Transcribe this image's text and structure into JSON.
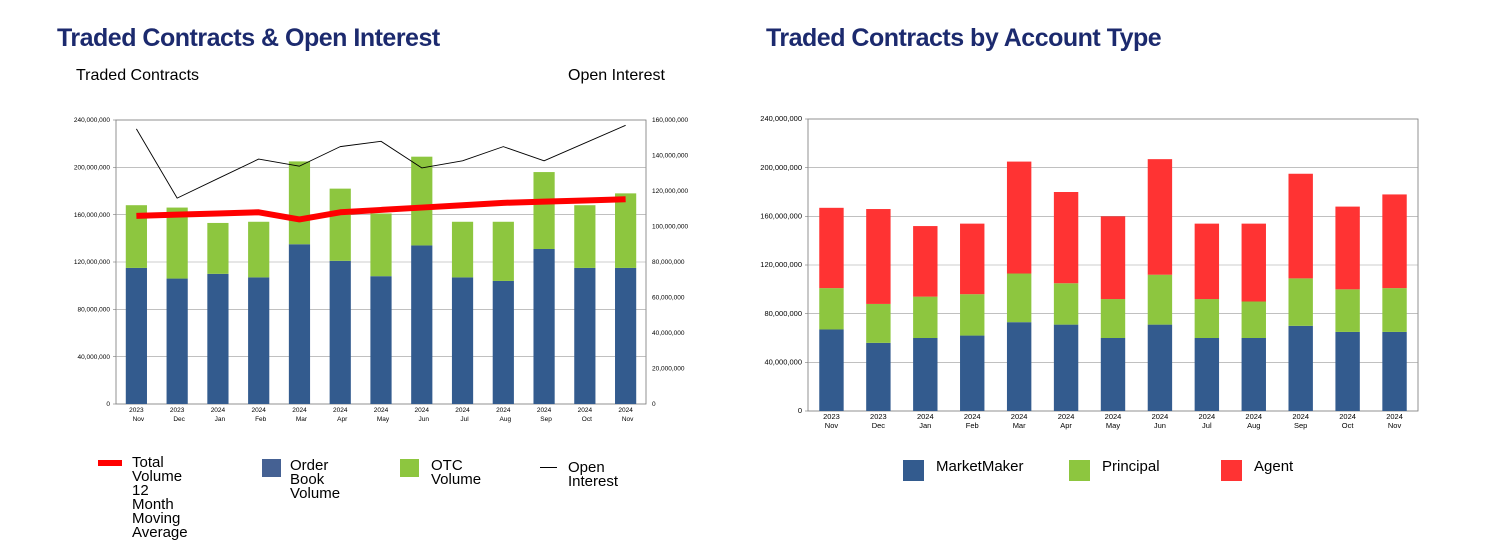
{
  "chart_data": [
    {
      "type": "bar",
      "title": "Traded Contracts & Open Interest",
      "ylabel": "Traded Contracts",
      "y2label": "Open Interest",
      "stacked": true,
      "categories": [
        [
          "2023",
          "Nov"
        ],
        [
          "2023",
          "Dec"
        ],
        [
          "2024",
          "Jan"
        ],
        [
          "2024",
          "Feb"
        ],
        [
          "2024",
          "Mar"
        ],
        [
          "2024",
          "Apr"
        ],
        [
          "2024",
          "May"
        ],
        [
          "2024",
          "Jun"
        ],
        [
          "2024",
          "Jul"
        ],
        [
          "2024",
          "Aug"
        ],
        [
          "2024",
          "Sep"
        ],
        [
          "2024",
          "Oct"
        ],
        [
          "2024",
          "Nov"
        ]
      ],
      "ylim": [
        0,
        240000000
      ],
      "y2lim": [
        0,
        160000000
      ],
      "yticks": [
        "0",
        "40,000,000",
        "80,000,000",
        "120,000,000",
        "160,000,000",
        "200,000,000",
        "240,000,000"
      ],
      "y2ticks": [
        "0",
        "20,000,000",
        "40,000,000",
        "60,000,000",
        "80,000,000",
        "100,000,000",
        "120,000,000",
        "140,000,000",
        "160,000,000"
      ],
      "grid": true,
      "series": [
        {
          "name": "Order Book Volume",
          "kind": "bar",
          "axis": "left",
          "color": "#335b8e",
          "values": [
            115000000,
            106000000,
            110000000,
            107000000,
            135000000,
            121000000,
            108000000,
            134000000,
            107000000,
            104000000,
            131000000,
            115000000,
            115000000
          ]
        },
        {
          "name": "OTC Volume",
          "kind": "bar",
          "axis": "left",
          "color": "#8dc63f",
          "values": [
            53000000,
            60000000,
            43000000,
            47000000,
            70000000,
            61000000,
            53000000,
            75000000,
            47000000,
            50000000,
            65000000,
            53000000,
            63000000
          ]
        },
        {
          "name": "Total Volume 12 Month Moving Average",
          "kind": "line",
          "axis": "left",
          "color": "#ff0000",
          "values": [
            159000000,
            160000000,
            161000000,
            162000000,
            156000000,
            162000000,
            164000000,
            166000000,
            168000000,
            170000000,
            171000000,
            172000000,
            173000000
          ]
        },
        {
          "name": "Open Interest",
          "kind": "line",
          "axis": "right",
          "color": "#000000",
          "values": [
            155000000,
            116000000,
            127000000,
            138000000,
            134000000,
            145000000,
            148000000,
            133000000,
            137000000,
            145000000,
            137000000,
            147000000,
            157000000
          ]
        }
      ],
      "legend": [
        {
          "label": "Total Volume\n12 Month\nMoving Average",
          "type": "line",
          "color": "#ff0000"
        },
        {
          "label": "Order Book\nVolume",
          "type": "box",
          "color": "#456193"
        },
        {
          "label": "OTC Volume",
          "type": "box",
          "color": "#8dc63f"
        },
        {
          "label": "Open Interest",
          "type": "thinline",
          "color": "#000000"
        }
      ],
      "legend_position": "bottom"
    },
    {
      "type": "bar",
      "title": "Traded Contracts by Account Type",
      "stacked": true,
      "categories": [
        [
          "2023",
          "Nov"
        ],
        [
          "2023",
          "Dec"
        ],
        [
          "2024",
          "Jan"
        ],
        [
          "2024",
          "Feb"
        ],
        [
          "2024",
          "Mar"
        ],
        [
          "2024",
          "Apr"
        ],
        [
          "2024",
          "May"
        ],
        [
          "2024",
          "Jun"
        ],
        [
          "2024",
          "Jul"
        ],
        [
          "2024",
          "Aug"
        ],
        [
          "2024",
          "Sep"
        ],
        [
          "2024",
          "Oct"
        ],
        [
          "2024",
          "Nov"
        ]
      ],
      "ylim": [
        0,
        240000000
      ],
      "yticks": [
        "0",
        "40,000,000",
        "80,000,000",
        "120,000,000",
        "160,000,000",
        "200,000,000",
        "240,000,000"
      ],
      "grid": true,
      "series": [
        {
          "name": "MarketMaker",
          "color": "#335b8e",
          "values": [
            67000000,
            56000000,
            60000000,
            62000000,
            73000000,
            71000000,
            60000000,
            71000000,
            60000000,
            60000000,
            70000000,
            65000000,
            65000000
          ]
        },
        {
          "name": "Principal",
          "color": "#8dc63f",
          "values": [
            34000000,
            32000000,
            34000000,
            34000000,
            40000000,
            34000000,
            32000000,
            41000000,
            32000000,
            30000000,
            39000000,
            35000000,
            36000000
          ]
        },
        {
          "name": "Agent",
          "color": "#ff3333",
          "values": [
            66000000,
            78000000,
            58000000,
            58000000,
            92000000,
            75000000,
            68000000,
            95000000,
            62000000,
            64000000,
            86000000,
            68000000,
            77000000
          ]
        }
      ],
      "legend_position": "bottom"
    }
  ]
}
